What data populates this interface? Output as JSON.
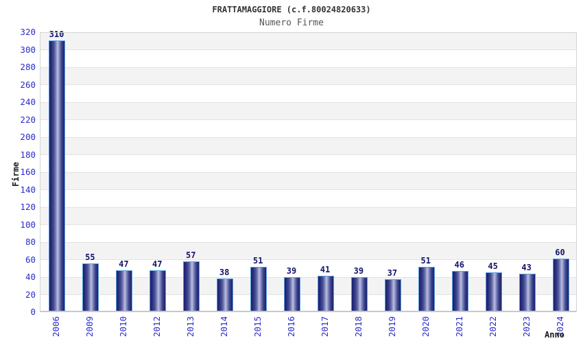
{
  "header": {
    "title": "FRATTAMAGGIORE (c.f.80024820633)"
  },
  "chart_data": {
    "type": "bar",
    "title": "Numero Firme",
    "xlabel": "Anno",
    "ylabel": "Firme",
    "categories": [
      "2006",
      "2009",
      "2010",
      "2012",
      "2013",
      "2014",
      "2015",
      "2016",
      "2017",
      "2018",
      "2019",
      "2020",
      "2021",
      "2022",
      "2023",
      "2024"
    ],
    "values": [
      310,
      55,
      47,
      47,
      57,
      38,
      51,
      39,
      41,
      39,
      37,
      51,
      46,
      45,
      43,
      60
    ],
    "ylim": [
      0,
      320
    ],
    "ytick_step": 20,
    "legend_position": "none",
    "grid": "horizontal bands alternating white/gray every 20 units with light gridlines",
    "colors": {
      "bar_dark": "#1b2070",
      "bar_highlight": "#bcc1e0",
      "bar_border": "#58a0e0",
      "tick_label": "#2a2ace",
      "value_label": "#14146e",
      "axis_title": "#1a1a1a",
      "title_text": "#333333",
      "subtitle_text": "#555555",
      "band_gray": "#f3f3f3",
      "gridline": "#e2e2e2",
      "frame": "#d4d4d4"
    }
  }
}
